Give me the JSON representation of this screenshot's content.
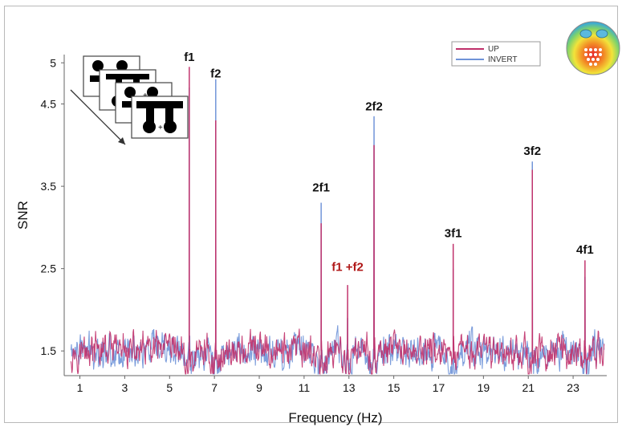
{
  "chart_data": {
    "type": "line",
    "title": "",
    "xlabel": "Frequency (Hz)",
    "ylabel": "SNR",
    "xlim": [
      0.3,
      24.5
    ],
    "ylim": [
      1.2,
      5.1
    ],
    "x_ticks": [
      "1",
      "3",
      "5",
      "7",
      "9",
      "11",
      "13",
      "15",
      "17",
      "19",
      "21",
      "23"
    ],
    "y_ticks": [
      "1.5",
      "2.5",
      "3.5",
      "4.5",
      "5"
    ],
    "legend_position": "top-right",
    "series": [
      {
        "name": "UP",
        "color": "#c0306a",
        "baseline_mean": 1.5,
        "peaks": [
          {
            "x": 5.88,
            "y": 4.95
          },
          {
            "x": 7.06,
            "y": 4.3
          },
          {
            "x": 11.76,
            "y": 3.05
          },
          {
            "x": 12.94,
            "y": 2.3
          },
          {
            "x": 14.12,
            "y": 4.0
          },
          {
            "x": 17.65,
            "y": 2.8
          },
          {
            "x": 21.18,
            "y": 3.7
          },
          {
            "x": 23.53,
            "y": 2.6
          }
        ]
      },
      {
        "name": "INVERT",
        "color": "#6f93d8",
        "baseline_mean": 1.5,
        "peaks": [
          {
            "x": 5.88,
            "y": 4.7
          },
          {
            "x": 7.06,
            "y": 4.8
          },
          {
            "x": 11.76,
            "y": 3.3
          },
          {
            "x": 12.94,
            "y": 1.9
          },
          {
            "x": 14.12,
            "y": 4.35
          },
          {
            "x": 17.65,
            "y": 2.5
          },
          {
            "x": 21.18,
            "y": 3.8
          },
          {
            "x": 23.53,
            "y": 2.4
          }
        ]
      }
    ],
    "annotations": [
      {
        "text": "f1",
        "x": 5.88,
        "y": 5.02,
        "color": "#111111"
      },
      {
        "text": "f2",
        "x": 7.06,
        "y": 4.82,
        "color": "#111111"
      },
      {
        "text": "2f2",
        "x": 14.12,
        "y": 4.42,
        "color": "#111111"
      },
      {
        "text": "2f1",
        "x": 11.76,
        "y": 3.44,
        "color": "#111111"
      },
      {
        "text": "3f2",
        "x": 21.18,
        "y": 3.88,
        "color": "#111111"
      },
      {
        "text": "3f1",
        "x": 17.65,
        "y": 2.88,
        "color": "#111111"
      },
      {
        "text": "f1 +f2",
        "x": 12.94,
        "y": 2.47,
        "color": "#b01818"
      },
      {
        "text": "4f1",
        "x": 23.53,
        "y": 2.68,
        "color": "#111111"
      }
    ]
  },
  "legend": {
    "items": [
      {
        "label": "UP",
        "color": "#c0306a"
      },
      {
        "label": "INVERT",
        "color": "#6f93d8"
      }
    ]
  },
  "inset": {
    "stimulus_icon": "face-stimulus-sequence-icon",
    "topography_icon": "scalp-topography-icon"
  }
}
